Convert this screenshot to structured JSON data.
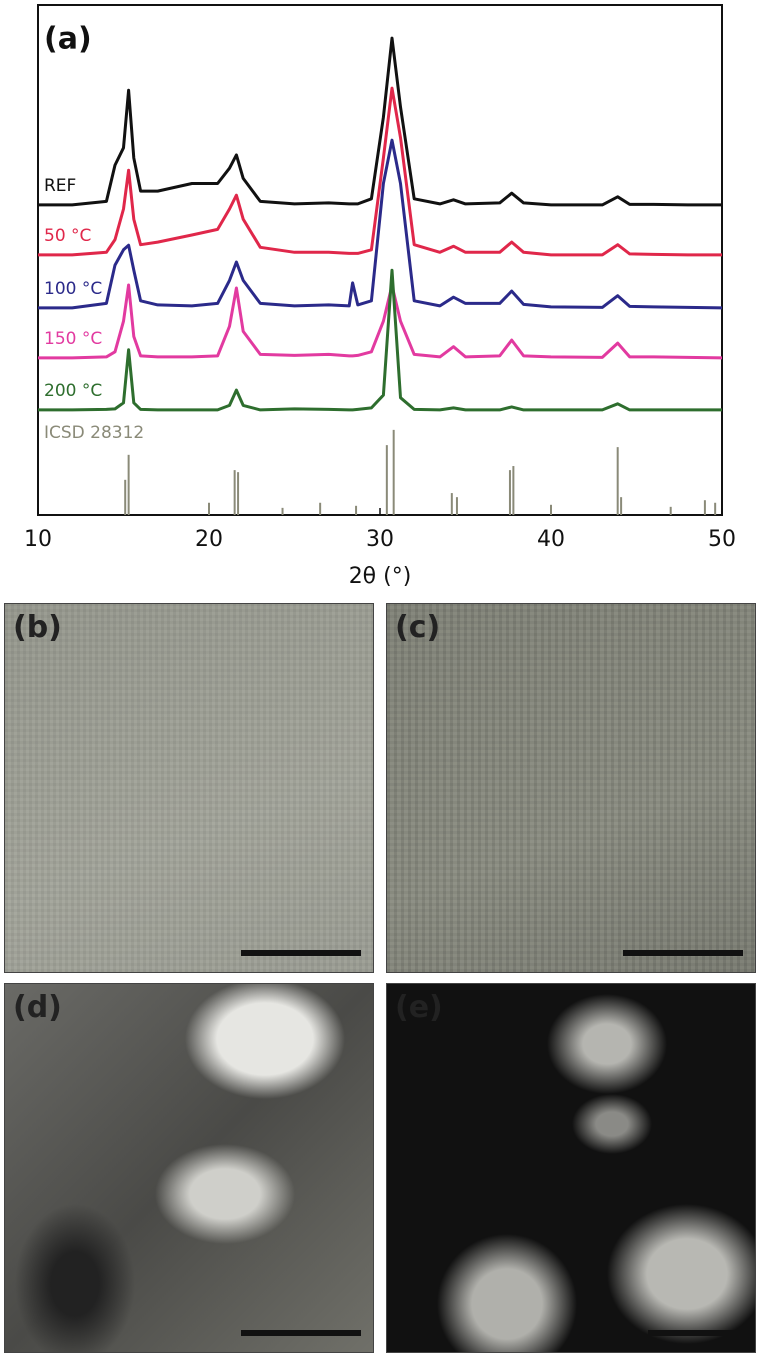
{
  "chart_data": {
    "type": "line",
    "title": "(a)",
    "x_label": "2θ (°)",
    "xlim": [
      10,
      50
    ],
    "xticks": [
      10,
      20,
      30,
      40,
      50
    ],
    "ylim": [
      0,
      100
    ],
    "x": [
      10,
      12,
      14,
      14.5,
      15,
      15.3,
      15.6,
      16,
      17,
      19,
      20.5,
      21.2,
      21.6,
      22,
      23,
      25,
      27,
      28.2,
      28.4,
      28.7,
      29.5,
      30.2,
      30.7,
      31.2,
      32,
      33.5,
      34.3,
      35,
      37,
      37.7,
      38.4,
      40,
      43,
      43.9,
      44.6,
      46,
      48,
      50
    ],
    "series": [
      {
        "name": "REF",
        "color": "#111111",
        "values": [
          60.8,
          60.8,
          61.5,
          68.6,
          72,
          83.3,
          70,
          63.5,
          63.5,
          65,
          65,
          68,
          70.6,
          66,
          61.5,
          61,
          61.2,
          61,
          61,
          61,
          62,
          78,
          93.5,
          80,
          62,
          61,
          61.8,
          61,
          61.2,
          63.1,
          61.2,
          60.8,
          60.8,
          62.4,
          60.9,
          60.9,
          60.8,
          60.8
        ]
      },
      {
        "name": "50 °C",
        "color": "#e0274a",
        "values": [
          51,
          51,
          51.5,
          54,
          60,
          67.6,
          58,
          53,
          53.5,
          54.9,
          56,
          60,
          62.7,
          58,
          52.5,
          51.5,
          51.5,
          51.3,
          51.3,
          51.3,
          52,
          70,
          83.7,
          74,
          53,
          51.5,
          52.7,
          51.5,
          51.5,
          53.5,
          51.5,
          51,
          51,
          53,
          51.2,
          51.1,
          51,
          51
        ]
      },
      {
        "name": "100 °C",
        "color": "#2b2a8a",
        "values": [
          40.6,
          40.6,
          41.5,
          49,
          52,
          52.9,
          48,
          42,
          41.2,
          41,
          41.5,
          46,
          49.6,
          46,
          41.5,
          41,
          41.2,
          41,
          45.5,
          41.2,
          42,
          65,
          73.5,
          65,
          42,
          41,
          42.7,
          41.5,
          41.5,
          43.9,
          41.3,
          40.8,
          40.7,
          43,
          40.9,
          40.8,
          40.7,
          40.6
        ]
      },
      {
        "name": "150 °C",
        "color": "#e23aa0",
        "values": [
          30.8,
          30.8,
          31,
          32,
          38,
          45.1,
          35,
          31.2,
          31,
          31,
          31.2,
          37,
          44.5,
          36,
          31.5,
          31.3,
          31.5,
          31.2,
          31.2,
          31.3,
          32,
          38,
          45,
          38,
          31.5,
          31,
          33,
          31,
          31.2,
          34.3,
          31.2,
          31,
          30.9,
          33.7,
          31,
          31,
          30.9,
          30.8
        ]
      },
      {
        "name": "200 °C",
        "color": "#2e6e2e",
        "values": [
          20.6,
          20.6,
          20.7,
          20.8,
          22,
          32.4,
          22,
          20.7,
          20.6,
          20.6,
          20.6,
          21.5,
          24.5,
          21.5,
          20.6,
          20.8,
          20.7,
          20.6,
          20.6,
          20.7,
          21,
          23.5,
          48,
          23,
          20.7,
          20.6,
          21,
          20.6,
          20.6,
          21.2,
          20.6,
          20.6,
          20.6,
          21.8,
          20.6,
          20.6,
          20.6,
          20.6
        ]
      }
    ],
    "reference": {
      "name": "ICSD 28312",
      "color": "#8a8a78",
      "x": [
        15.1,
        15.3,
        20,
        21.5,
        21.7,
        24.3,
        26.5,
        28.6,
        30.4,
        30.8,
        34.2,
        34.5,
        37.6,
        37.8,
        40,
        43.9,
        44.1,
        47,
        49,
        49.6
      ],
      "values": [
        6.9,
        11.8,
        2.4,
        8.8,
        8.4,
        1.4,
        2.4,
        1.8,
        13.7,
        16.7,
        4.3,
        3.5,
        8.8,
        9.6,
        2,
        13.3,
        3.5,
        1.6,
        2.9,
        2.4
      ]
    }
  },
  "panels": [
    {
      "label": "(b)"
    },
    {
      "label": "(c)"
    },
    {
      "label": "(d)"
    },
    {
      "label": "(e)"
    }
  ]
}
